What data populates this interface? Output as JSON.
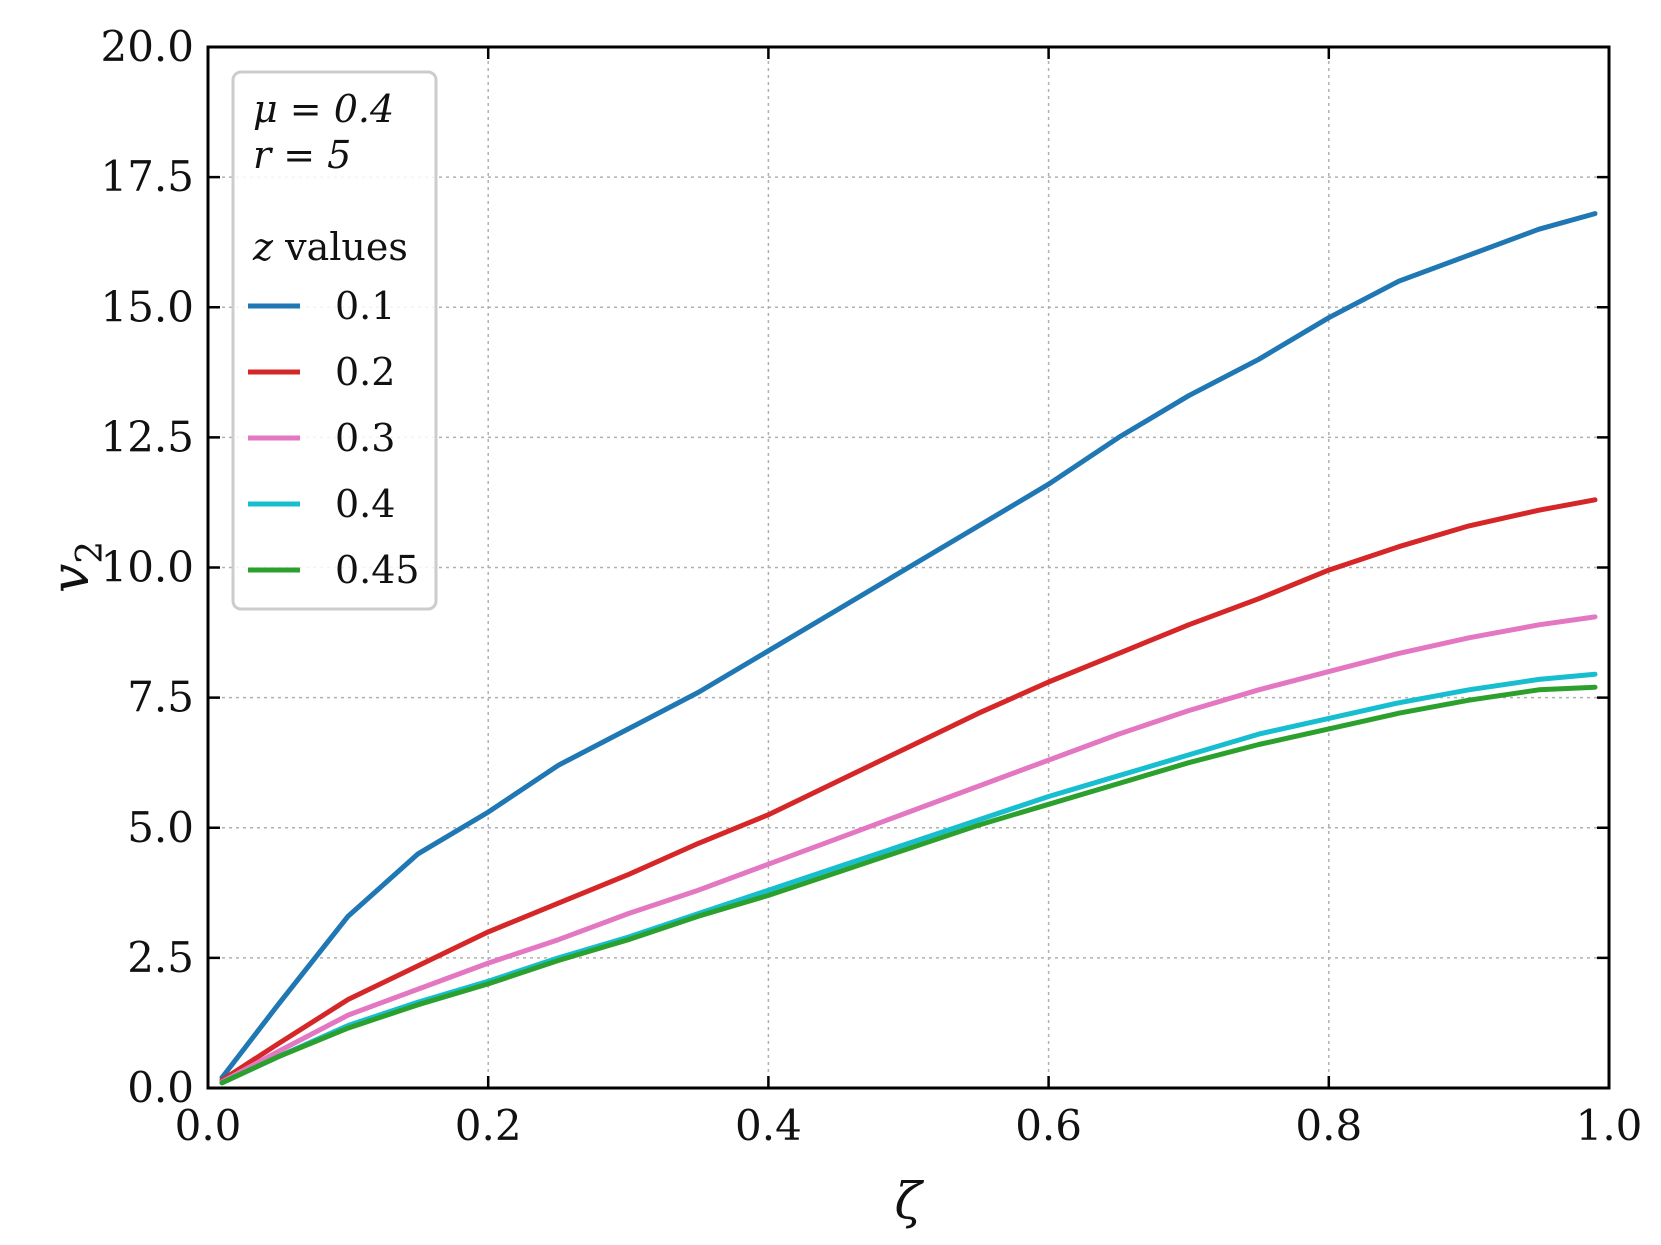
{
  "chart_data": {
    "type": "line",
    "xlabel": "ζ",
    "ylabel": "v2",
    "xlim": [
      0.0,
      1.0
    ],
    "ylim": [
      0.0,
      20.0
    ],
    "xticks": [
      "0.0",
      "0.2",
      "0.4",
      "0.6",
      "0.8",
      "1.0"
    ],
    "yticks": [
      "0.0",
      "2.5",
      "5.0",
      "7.5",
      "10.0",
      "12.5",
      "15.0",
      "17.5",
      "20.0"
    ],
    "grid": true,
    "legend_position": "upper-left",
    "annotations": [
      "μ = 0.4",
      "r = 5"
    ],
    "legend_title": "z values",
    "x": [
      0.01,
      0.05,
      0.1,
      0.15,
      0.2,
      0.25,
      0.3,
      0.35,
      0.4,
      0.45,
      0.5,
      0.55,
      0.6,
      0.65,
      0.7,
      0.75,
      0.8,
      0.85,
      0.9,
      0.95,
      0.99
    ],
    "series": [
      {
        "name": "0.1",
        "color": "#1f77b4",
        "values": [
          0.2,
          1.6,
          3.3,
          4.5,
          5.3,
          6.2,
          6.9,
          7.6,
          8.4,
          9.2,
          10.0,
          10.8,
          11.6,
          12.5,
          13.3,
          14.0,
          14.8,
          15.5,
          16.0,
          16.5,
          16.8
        ]
      },
      {
        "name": "0.2",
        "color": "#d62728",
        "values": [
          0.15,
          0.85,
          1.7,
          2.35,
          3.0,
          3.55,
          4.1,
          4.7,
          5.25,
          5.9,
          6.55,
          7.2,
          7.8,
          8.35,
          8.9,
          9.4,
          9.95,
          10.4,
          10.8,
          11.1,
          11.3
        ]
      },
      {
        "name": "0.3",
        "color": "#e377c2",
        "values": [
          0.12,
          0.7,
          1.4,
          1.9,
          2.4,
          2.85,
          3.35,
          3.8,
          4.3,
          4.8,
          5.3,
          5.8,
          6.3,
          6.8,
          7.25,
          7.65,
          8.0,
          8.35,
          8.65,
          8.9,
          9.05
        ]
      },
      {
        "name": "0.4",
        "color": "#17becf",
        "values": [
          0.1,
          0.6,
          1.2,
          1.65,
          2.05,
          2.5,
          2.9,
          3.35,
          3.8,
          4.25,
          4.7,
          5.15,
          5.6,
          6.0,
          6.4,
          6.8,
          7.1,
          7.4,
          7.65,
          7.85,
          7.95
        ]
      },
      {
        "name": "0.45",
        "color": "#2ca02c",
        "values": [
          0.1,
          0.6,
          1.15,
          1.6,
          2.0,
          2.45,
          2.85,
          3.3,
          3.7,
          4.15,
          4.6,
          5.05,
          5.45,
          5.85,
          6.25,
          6.6,
          6.9,
          7.2,
          7.45,
          7.65,
          7.7
        ]
      }
    ]
  },
  "legend": {
    "mu_label": "μ = 0.4",
    "r_label": "r = 5",
    "title_var": "z",
    "title_rest": " values"
  },
  "axes": {
    "x_title": "ζ",
    "y_title_main": "v",
    "y_title_sub": "2"
  }
}
